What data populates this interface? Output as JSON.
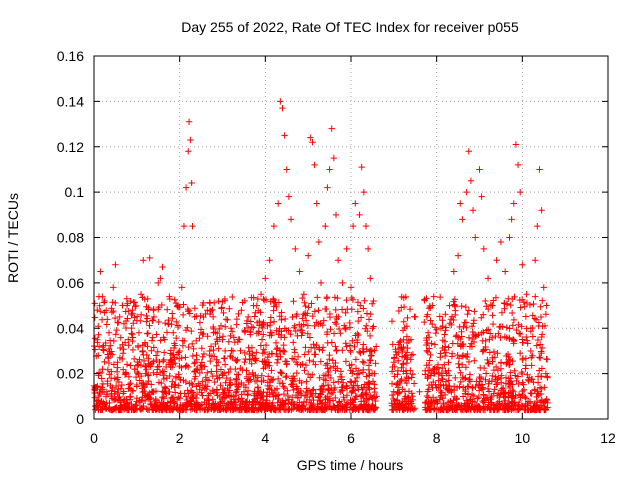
{
  "chart_data": {
    "type": "scatter",
    "title": "Day 255 of 2022, Rate Of TEC Index for receiver p055",
    "xlabel": "GPS time / hours",
    "ylabel": "ROTI / TECUs",
    "xlim": [
      0,
      12
    ],
    "ylim": [
      0,
      0.16
    ],
    "xticks": [
      0,
      2,
      4,
      6,
      8,
      10,
      12
    ],
    "yticks": [
      0,
      0.02,
      0.04,
      0.06,
      0.08,
      0.1,
      0.12,
      0.14,
      0.16
    ],
    "xtick_labels": [
      "0",
      "2",
      "4",
      "6",
      "8",
      "10",
      "12"
    ],
    "ytick_labels": [
      "0",
      "0.02",
      "0.04",
      "0.06",
      "0.08",
      "0.1",
      "0.12",
      "0.14",
      "0.16"
    ],
    "grid": true,
    "marker": "+",
    "color": "#ff0000",
    "series": [
      {
        "name": "ROTI",
        "points": [
          [
            0.05,
            0.014
          ],
          [
            0.1,
            0.028
          ],
          [
            0.15,
            0.065
          ],
          [
            0.2,
            0.022
          ],
          [
            0.25,
            0.052
          ],
          [
            0.3,
            0.012
          ],
          [
            0.35,
            0.038
          ],
          [
            0.4,
            0.018
          ],
          [
            0.45,
            0.058
          ],
          [
            0.5,
            0.068
          ],
          [
            0.55,
            0.025
          ],
          [
            0.6,
            0.045
          ],
          [
            0.65,
            0.015
          ],
          [
            0.7,
            0.042
          ],
          [
            0.75,
            0.02
          ],
          [
            0.8,
            0.035
          ],
          [
            0.85,
            0.01
          ],
          [
            0.9,
            0.048
          ],
          [
            0.95,
            0.022
          ],
          [
            1.0,
            0.015
          ],
          [
            1.05,
            0.038
          ],
          [
            1.1,
            0.055
          ],
          [
            1.15,
            0.07
          ],
          [
            1.2,
            0.02
          ],
          [
            1.25,
            0.032
          ],
          [
            1.3,
            0.071
          ],
          [
            1.35,
            0.012
          ],
          [
            1.4,
            0.045
          ],
          [
            1.45,
            0.028
          ],
          [
            1.5,
            0.06
          ],
          [
            1.55,
            0.062
          ],
          [
            1.6,
            0.067
          ],
          [
            1.65,
            0.035
          ],
          [
            1.7,
            0.018
          ],
          [
            1.75,
            0.042
          ],
          [
            1.8,
            0.025
          ],
          [
            1.85,
            0.038
          ],
          [
            1.9,
            0.015
          ],
          [
            1.95,
            0.05
          ],
          [
            2.0,
            0.03
          ],
          [
            2.05,
            0.058
          ],
          [
            2.1,
            0.085
          ],
          [
            2.15,
            0.102
          ],
          [
            2.2,
            0.118
          ],
          [
            2.22,
            0.131
          ],
          [
            2.25,
            0.123
          ],
          [
            2.28,
            0.104
          ],
          [
            2.3,
            0.085
          ],
          [
            2.35,
            0.045
          ],
          [
            2.4,
            0.022
          ],
          [
            2.5,
            0.038
          ],
          [
            2.6,
            0.015
          ],
          [
            2.7,
            0.03
          ],
          [
            2.8,
            0.012
          ],
          [
            2.9,
            0.025
          ],
          [
            3.0,
            0.035
          ],
          [
            3.1,
            0.018
          ],
          [
            3.2,
            0.04
          ],
          [
            3.3,
            0.022
          ],
          [
            3.4,
            0.035
          ],
          [
            3.5,
            0.015
          ],
          [
            3.6,
            0.045
          ],
          [
            3.7,
            0.028
          ],
          [
            3.8,
            0.05
          ],
          [
            3.9,
            0.055
          ],
          [
            4.0,
            0.062
          ],
          [
            4.1,
            0.07
          ],
          [
            4.2,
            0.085
          ],
          [
            4.3,
            0.095
          ],
          [
            4.35,
            0.14
          ],
          [
            4.4,
            0.137
          ],
          [
            4.45,
            0.125
          ],
          [
            4.5,
            0.11
          ],
          [
            4.55,
            0.098
          ],
          [
            4.6,
            0.088
          ],
          [
            4.7,
            0.075
          ],
          [
            4.8,
            0.065
          ],
          [
            4.9,
            0.055
          ],
          [
            5.0,
            0.072
          ],
          [
            5.05,
            0.124
          ],
          [
            5.1,
            0.122
          ],
          [
            5.15,
            0.112
          ],
          [
            5.2,
            0.095
          ],
          [
            5.25,
            0.078
          ],
          [
            5.3,
            0.06
          ],
          [
            5.4,
            0.085
          ],
          [
            5.45,
            0.102
          ],
          [
            5.5,
            0.11
          ],
          [
            5.55,
            0.128
          ],
          [
            5.6,
            0.115
          ],
          [
            5.65,
            0.09
          ],
          [
            5.7,
            0.07
          ],
          [
            5.8,
            0.06
          ],
          [
            5.9,
            0.075
          ],
          [
            6.0,
            0.058
          ],
          [
            6.05,
            0.085
          ],
          [
            6.1,
            0.095
          ],
          [
            6.2,
            0.09
          ],
          [
            6.25,
            0.111
          ],
          [
            6.3,
            0.1
          ],
          [
            6.35,
            0.085
          ],
          [
            6.4,
            0.075
          ],
          [
            6.45,
            0.062
          ],
          [
            6.5,
            0.04
          ],
          [
            6.55,
            0.02
          ],
          [
            6.6,
            0.01
          ],
          [
            7.0,
            0.025
          ],
          [
            7.1,
            0.015
          ],
          [
            7.2,
            0.03
          ],
          [
            7.3,
            0.02
          ],
          [
            7.4,
            0.035
          ],
          [
            7.5,
            0.045
          ],
          [
            7.6,
            0.012
          ],
          [
            7.8,
            0.038
          ],
          [
            7.9,
            0.05
          ],
          [
            8.0,
            0.022
          ],
          [
            8.1,
            0.04
          ],
          [
            8.2,
            0.032
          ],
          [
            8.3,
            0.05
          ],
          [
            8.4,
            0.065
          ],
          [
            8.5,
            0.072
          ],
          [
            8.55,
            0.095
          ],
          [
            8.6,
            0.088
          ],
          [
            8.7,
            0.1
          ],
          [
            8.75,
            0.118
          ],
          [
            8.8,
            0.105
          ],
          [
            8.85,
            0.092
          ],
          [
            8.9,
            0.08
          ],
          [
            9.0,
            0.11
          ],
          [
            9.05,
            0.098
          ],
          [
            9.1,
            0.075
          ],
          [
            9.2,
            0.062
          ],
          [
            9.3,
            0.05
          ],
          [
            9.4,
            0.07
          ],
          [
            9.5,
            0.078
          ],
          [
            9.6,
            0.065
          ],
          [
            9.7,
            0.08
          ],
          [
            9.75,
            0.088
          ],
          [
            9.8,
            0.095
          ],
          [
            9.85,
            0.121
          ],
          [
            9.9,
            0.112
          ],
          [
            9.95,
            0.1
          ],
          [
            10.0,
            0.068
          ],
          [
            10.1,
            0.055
          ],
          [
            10.2,
            0.04
          ],
          [
            10.3,
            0.07
          ],
          [
            10.35,
            0.085
          ],
          [
            10.4,
            0.11
          ],
          [
            10.45,
            0.092
          ],
          [
            10.5,
            0.058
          ],
          [
            10.55,
            0.02
          ]
        ]
      }
    ]
  }
}
